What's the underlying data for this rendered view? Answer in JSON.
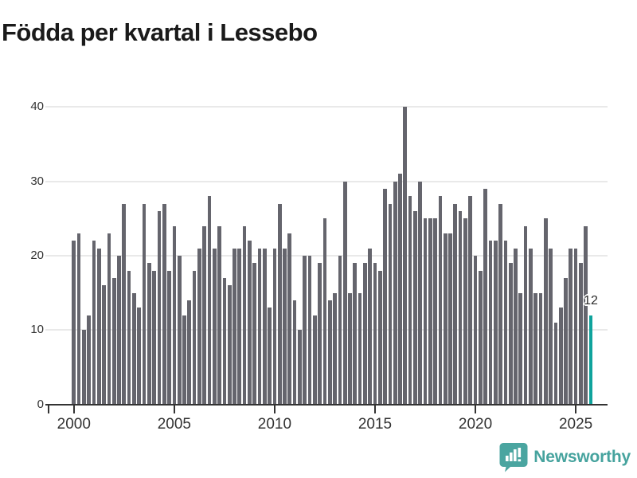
{
  "title": "Födda per kvartal i Lessebo",
  "chart_data": {
    "type": "bar",
    "period": "quarterly",
    "start_year": 2000,
    "start_quarter": 1,
    "values": [
      22,
      23,
      10,
      12,
      22,
      21,
      16,
      23,
      17,
      20,
      27,
      18,
      15,
      13,
      27,
      19,
      18,
      26,
      27,
      18,
      24,
      20,
      12,
      14,
      18,
      21,
      24,
      28,
      21,
      24,
      17,
      16,
      21,
      21,
      24,
      22,
      19,
      21,
      21,
      13,
      21,
      27,
      21,
      23,
      14,
      10,
      20,
      20,
      12,
      19,
      25,
      14,
      15,
      20,
      30,
      15,
      19,
      15,
      19,
      21,
      19,
      18,
      29,
      27,
      30,
      31,
      40,
      28,
      26,
      30,
      25,
      25,
      25,
      28,
      23,
      23,
      27,
      26,
      25,
      28,
      20,
      18,
      29,
      22,
      22,
      27,
      22,
      19,
      21,
      15,
      24,
      21,
      15,
      15,
      25,
      21,
      11,
      13,
      17,
      21,
      21,
      19,
      24,
      12
    ],
    "xtick_years": [
      "2000",
      "2005",
      "2010",
      "2015",
      "2020",
      "2025"
    ],
    "yticks": [
      0,
      10,
      20,
      30,
      40
    ],
    "ylim": [
      0,
      43
    ],
    "grid": true,
    "highlight_index": 103,
    "highlight_value_label": "12",
    "bar_color": "#65656d",
    "highlight_color": "#0fa39c",
    "axis_color": "#333333",
    "gridline_color": "#e9e9e9"
  },
  "footer": {
    "brand": "Newsworthy",
    "brand_color": "#46a39e"
  }
}
